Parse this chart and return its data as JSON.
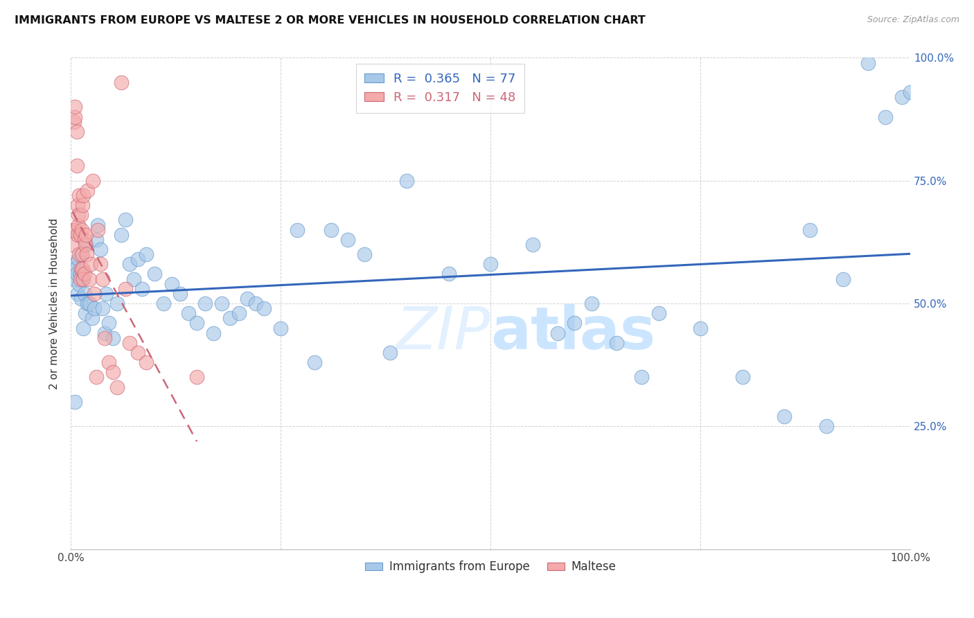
{
  "title": "IMMIGRANTS FROM EUROPE VS MALTESE 2 OR MORE VEHICLES IN HOUSEHOLD CORRELATION CHART",
  "source": "Source: ZipAtlas.com",
  "ylabel": "2 or more Vehicles in Household",
  "legend_label1": "Immigrants from Europe",
  "legend_label2": "Maltese",
  "R1": 0.365,
  "N1": 77,
  "R2": 0.317,
  "N2": 48,
  "color_blue": "#a8c8e8",
  "color_pink": "#f4aaaa",
  "edge_blue": "#6699cc",
  "edge_pink": "#cc6677",
  "line_blue": "#3366bb",
  "line_pink": "#cc6677",
  "blue_x": [
    0.003,
    0.004,
    0.005,
    0.006,
    0.007,
    0.008,
    0.009,
    0.01,
    0.011,
    0.012,
    0.013,
    0.014,
    0.015,
    0.016,
    0.017,
    0.018,
    0.02,
    0.022,
    0.025,
    0.028,
    0.03,
    0.032,
    0.035,
    0.038,
    0.04,
    0.042,
    0.045,
    0.05,
    0.055,
    0.06,
    0.065,
    0.07,
    0.075,
    0.08,
    0.085,
    0.09,
    0.1,
    0.11,
    0.12,
    0.13,
    0.14,
    0.15,
    0.16,
    0.17,
    0.18,
    0.19,
    0.2,
    0.21,
    0.22,
    0.23,
    0.25,
    0.27,
    0.29,
    0.31,
    0.33,
    0.35,
    0.38,
    0.4,
    0.45,
    0.5,
    0.55,
    0.58,
    0.6,
    0.62,
    0.65,
    0.68,
    0.7,
    0.75,
    0.8,
    0.85,
    0.88,
    0.9,
    0.92,
    0.95,
    0.97,
    0.99,
    1.0
  ],
  "blue_y": [
    0.55,
    0.58,
    0.3,
    0.57,
    0.56,
    0.52,
    0.59,
    0.54,
    0.56,
    0.51,
    0.6,
    0.55,
    0.45,
    0.52,
    0.48,
    0.62,
    0.5,
    0.5,
    0.47,
    0.49,
    0.63,
    0.66,
    0.61,
    0.49,
    0.44,
    0.52,
    0.46,
    0.43,
    0.5,
    0.64,
    0.67,
    0.58,
    0.55,
    0.59,
    0.53,
    0.6,
    0.56,
    0.5,
    0.54,
    0.52,
    0.48,
    0.46,
    0.5,
    0.44,
    0.5,
    0.47,
    0.48,
    0.51,
    0.5,
    0.49,
    0.45,
    0.65,
    0.38,
    0.65,
    0.63,
    0.6,
    0.4,
    0.75,
    0.56,
    0.58,
    0.62,
    0.44,
    0.46,
    0.5,
    0.42,
    0.35,
    0.48,
    0.45,
    0.35,
    0.27,
    0.65,
    0.25,
    0.55,
    0.99,
    0.88,
    0.92,
    0.93
  ],
  "pink_x": [
    0.002,
    0.003,
    0.004,
    0.005,
    0.005,
    0.006,
    0.007,
    0.007,
    0.008,
    0.008,
    0.009,
    0.009,
    0.01,
    0.01,
    0.011,
    0.011,
    0.012,
    0.012,
    0.013,
    0.013,
    0.014,
    0.014,
    0.015,
    0.015,
    0.016,
    0.016,
    0.017,
    0.018,
    0.019,
    0.02,
    0.022,
    0.024,
    0.026,
    0.028,
    0.03,
    0.032,
    0.035,
    0.038,
    0.04,
    0.045,
    0.05,
    0.055,
    0.06,
    0.065,
    0.07,
    0.08,
    0.09,
    0.15
  ],
  "pink_y": [
    0.62,
    0.65,
    0.87,
    0.88,
    0.9,
    0.65,
    0.85,
    0.78,
    0.64,
    0.7,
    0.66,
    0.68,
    0.6,
    0.72,
    0.64,
    0.55,
    0.68,
    0.57,
    0.65,
    0.6,
    0.7,
    0.57,
    0.55,
    0.72,
    0.56,
    0.63,
    0.62,
    0.64,
    0.6,
    0.73,
    0.55,
    0.58,
    0.75,
    0.52,
    0.35,
    0.65,
    0.58,
    0.55,
    0.43,
    0.38,
    0.36,
    0.33,
    0.95,
    0.53,
    0.42,
    0.4,
    0.38,
    0.35
  ]
}
